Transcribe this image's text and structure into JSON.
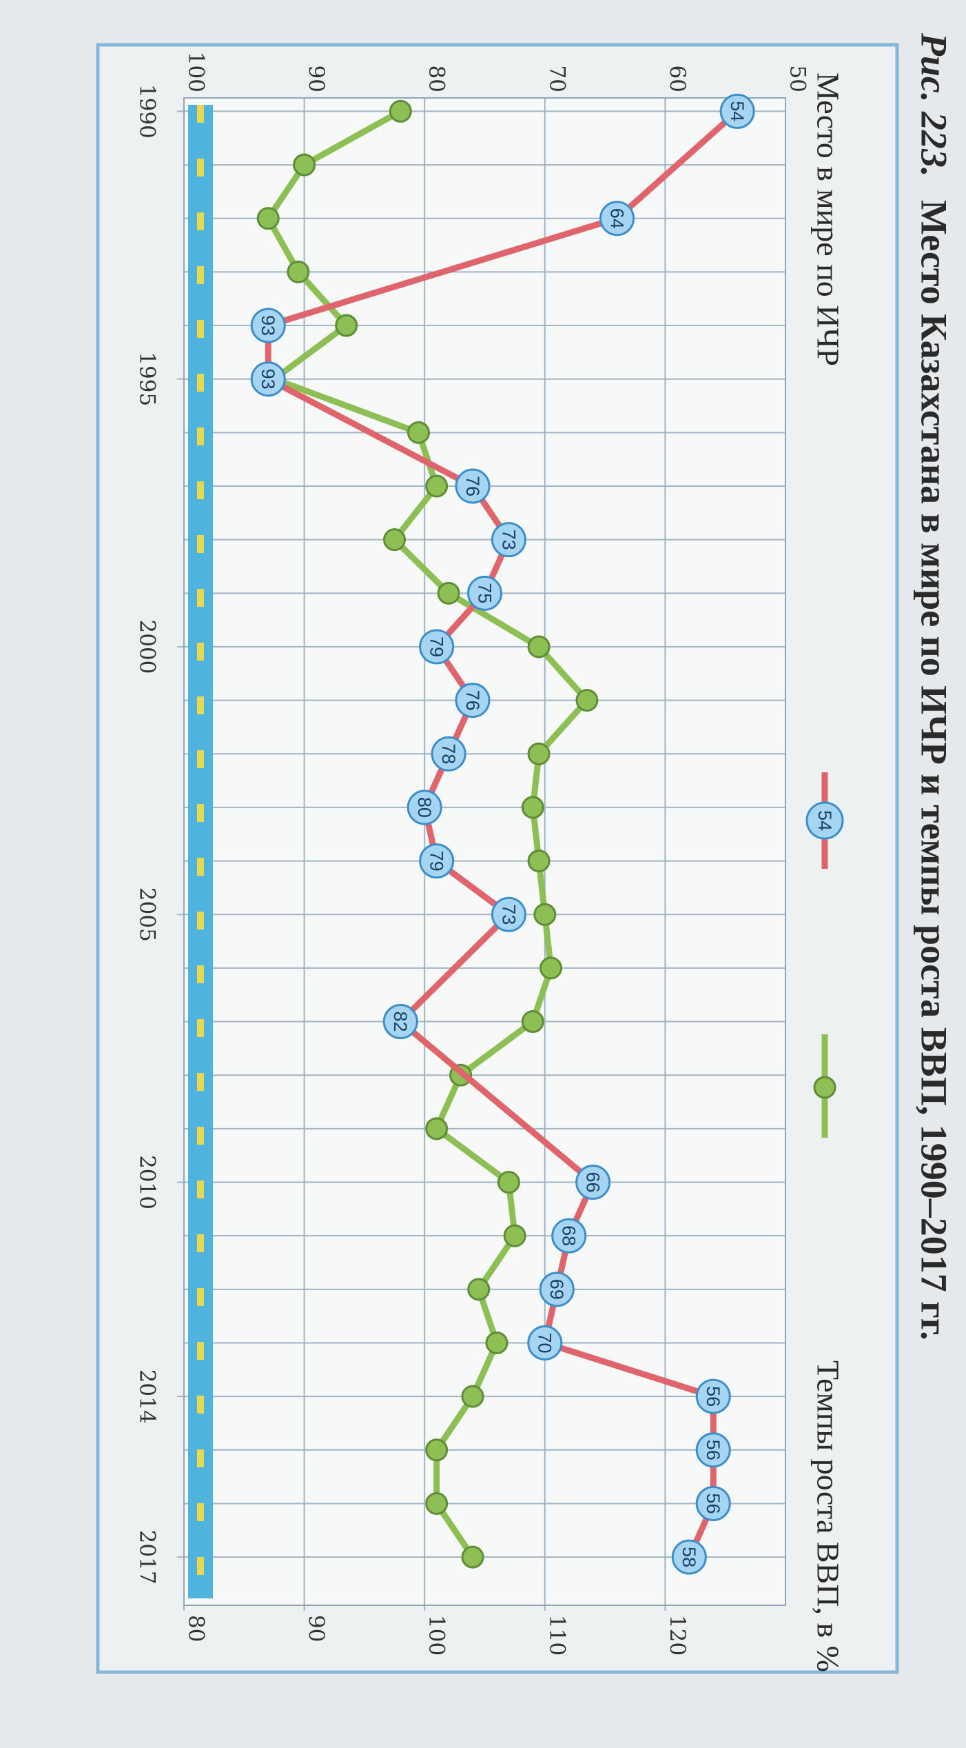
{
  "chart_data": {
    "type": "line",
    "caption_label": "Рис. 223.",
    "caption": "Место Казахстана в мире по ИЧР и темпы роста ВВП, 1990–2017 гг.",
    "legend_marker_label": "54",
    "xlim": [
      1989.75,
      2017.9
    ],
    "xticks": [
      1990,
      1995,
      2000,
      2005,
      2010,
      2014,
      2017
    ],
    "ylim": [
      100,
      50
    ],
    "yticks": [
      50,
      60,
      70,
      80,
      90,
      100
    ],
    "y2lim": [
      80,
      130
    ],
    "y2ticks": [
      80,
      90,
      100,
      110,
      120
    ],
    "grid": true,
    "series": [
      {
        "name": "Место в мире по ИЧР",
        "color": "#e0646c",
        "axis": "y",
        "x": [
          1990,
          1992,
          1994,
          1995,
          1997,
          1998,
          1999,
          2000,
          2001,
          2002,
          2003,
          2004,
          2005,
          2007,
          2010,
          2011,
          2012,
          2013,
          2014,
          2015,
          2016,
          2017
        ],
        "values": [
          54,
          64,
          93,
          93,
          76,
          73,
          75,
          79,
          76,
          78,
          80,
          79,
          73,
          82,
          66,
          68,
          69,
          70,
          56,
          56,
          56,
          58
        ]
      },
      {
        "name": "Темпы роста ВВП, в %",
        "color": "#8dbf55",
        "axis": "y2",
        "x": [
          1990,
          1991,
          1992,
          1993,
          1994,
          1995,
          1996,
          1997,
          1998,
          1999,
          2000,
          2001,
          2002,
          2003,
          2004,
          2005,
          2006,
          2007,
          2008,
          2009,
          2010,
          2011,
          2012,
          2013,
          2014,
          2015,
          2016,
          2017
        ],
        "values": [
          98,
          90,
          87,
          89.5,
          93.5,
          87.5,
          99.5,
          101,
          97.5,
          102,
          109.5,
          113.5,
          109.5,
          109,
          109.5,
          110,
          110.5,
          109,
          103,
          101,
          107,
          107.5,
          104.5,
          106,
          104,
          101,
          101,
          104
        ]
      }
    ]
  }
}
